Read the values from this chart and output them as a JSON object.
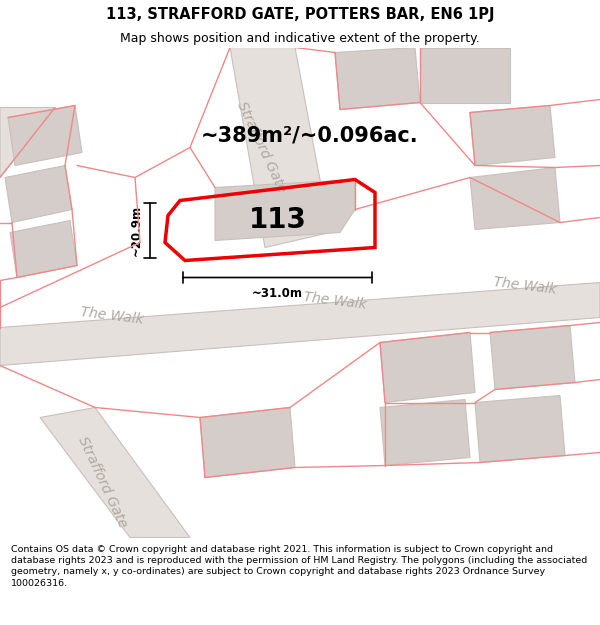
{
  "title": "113, STRAFFORD GATE, POTTERS BAR, EN6 1PJ",
  "subtitle": "Map shows position and indicative extent of the property.",
  "footer": "Contains OS data © Crown copyright and database right 2021. This information is subject to Crown copyright and database rights 2023 and is reproduced with the permission of HM Land Registry. The polygons (including the associated geometry, namely x, y co-ordinates) are subject to Crown copyright and database rights 2023 Ordnance Survey 100026316.",
  "area_label": "~389m²/~0.096ac.",
  "property_number": "113",
  "dim_width": "~31.0m",
  "dim_height": "~20.9m",
  "map_bg": "#f2edea",
  "road_fill": "#e5e0dc",
  "building_fill": "#d5cdc9",
  "bldg_edge": "#c8c0bc",
  "pink_line_color": "#f08888",
  "plot_stroke": "#ee0000",
  "label_color": "#b0a8a2",
  "title_fontsize": 10.5,
  "subtitle_fontsize": 9.0,
  "footer_fontsize": 6.8,
  "area_fontsize": 15,
  "number_fontsize": 20,
  "label_fontsize": 10
}
